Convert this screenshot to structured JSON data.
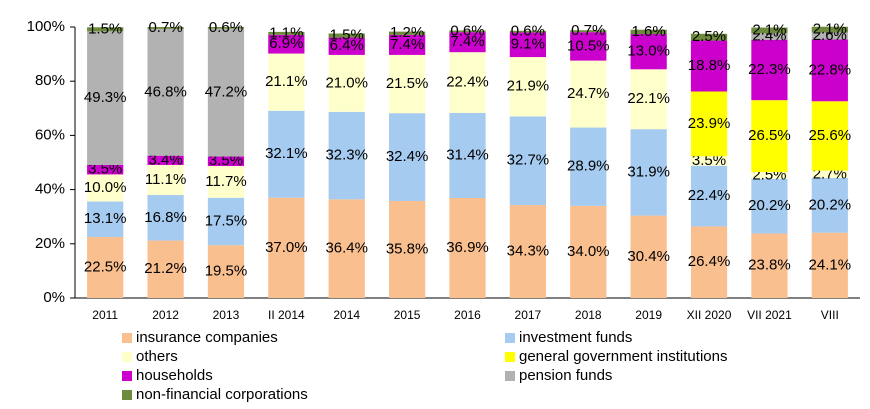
{
  "chart_data": {
    "type": "stacked_bar",
    "categories": [
      "2011",
      "2012",
      "2013",
      "II 2014",
      "2014",
      "2015",
      "2016",
      "2017",
      "2018",
      "2019",
      "XII 2020",
      "VII 2021",
      "VIII"
    ],
    "series": [
      {
        "name": "insurance companies",
        "color": "#fabf8f",
        "values": [
          22.5,
          21.2,
          19.5,
          37.0,
          36.4,
          35.8,
          36.9,
          34.3,
          34.0,
          30.4,
          26.4,
          23.8,
          24.1
        ],
        "value_labels": [
          "22.5%",
          "21.2%",
          "19.5%",
          "37.0%",
          "36.4%",
          "35.8%",
          "36.9%",
          "34.3%",
          "34.0%",
          "30.4%",
          "26.4%",
          "23.8%",
          "24.1%"
        ]
      },
      {
        "name": "investment funds",
        "color": "#a6cbf0",
        "values": [
          13.1,
          16.8,
          17.5,
          32.1,
          32.3,
          32.4,
          31.4,
          32.7,
          28.9,
          31.9,
          22.4,
          20.2,
          20.2
        ],
        "value_labels": [
          "13.1%",
          "16.8%",
          "17.5%",
          "32.1%",
          "32.3%",
          "32.4%",
          "31.4%",
          "32.7%",
          "28.9%",
          "31.9%",
          "22.4%",
          "20.2%",
          "20.2%"
        ]
      },
      {
        "name": "others",
        "color": "#ffffcc",
        "values": [
          10.0,
          11.1,
          11.7,
          21.1,
          21.0,
          21.5,
          22.4,
          21.9,
          24.7,
          22.1,
          3.5,
          2.5,
          2.7
        ],
        "value_labels": [
          "10.0%",
          "11.1%",
          "11.7%",
          "21.1%",
          "21.0%",
          "21.5%",
          "22.4%",
          "21.9%",
          "24.7%",
          "22.1%",
          "3.5%",
          "2.5%",
          "2.7%"
        ]
      },
      {
        "name": "general government institutions",
        "color": "#ffff00",
        "values": [
          null,
          null,
          null,
          null,
          null,
          null,
          null,
          null,
          null,
          null,
          23.9,
          26.5,
          25.6
        ],
        "value_labels": [
          null,
          null,
          null,
          null,
          null,
          null,
          null,
          null,
          null,
          null,
          "23.9%",
          "26.5%",
          "25.6%"
        ]
      },
      {
        "name": "households",
        "color": "#cc00cc",
        "values": [
          3.5,
          3.4,
          3.5,
          6.9,
          6.4,
          7.4,
          7.4,
          9.1,
          10.5,
          13.0,
          18.8,
          22.3,
          22.8
        ],
        "value_labels": [
          "3.5%",
          "3.4%",
          "3.5%",
          "6.9%",
          "6.4%",
          "7.4%",
          "7.4%",
          "9.1%",
          "10.5%",
          "13.0%",
          "18.8%",
          "22.3%",
          "22.8%"
        ]
      },
      {
        "name": "pension funds",
        "color": "#b2b2b2",
        "values": [
          49.3,
          46.8,
          47.2,
          null,
          null,
          null,
          null,
          null,
          null,
          null,
          null,
          2.4,
          2.6
        ],
        "value_labels": [
          "49.3%",
          "46.8%",
          "47.2%",
          null,
          null,
          null,
          null,
          null,
          null,
          null,
          null,
          "2.4%",
          "2.6%"
        ]
      },
      {
        "name": "non-financial corporations",
        "color": "#6e8a3c",
        "values": [
          1.5,
          0.7,
          0.6,
          1.1,
          1.5,
          1.2,
          0.6,
          0.6,
          0.7,
          1.6,
          2.5,
          2.1,
          2.1
        ],
        "value_labels": [
          "1.5%",
          "0.7%",
          "0.6%",
          "1.1%",
          "1.5%",
          "1.2%",
          "0.6%",
          "0.6%",
          "0.7%",
          "1.6%",
          "2.5%",
          "2.1%",
          "2.1%"
        ]
      }
    ],
    "ylim": [
      0,
      100
    ],
    "yticks": [
      {
        "value": 0,
        "label": "0%"
      },
      {
        "value": 20,
        "label": "20%"
      },
      {
        "value": 40,
        "label": "40%"
      },
      {
        "value": 60,
        "label": "60%"
      },
      {
        "value": 80,
        "label": "80%"
      },
      {
        "value": 100,
        "label": "100%"
      }
    ]
  }
}
